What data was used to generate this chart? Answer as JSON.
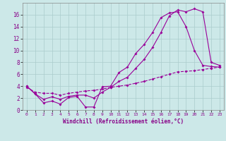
{
  "title": "",
  "xlabel": "Windchill (Refroidissement éolien,°C)",
  "bg_color": "#cce8e8",
  "line_color": "#990099",
  "grid_color": "#aacccc",
  "line1_x": [
    0,
    1,
    2,
    3,
    4,
    5,
    6,
    7,
    8,
    9,
    10,
    11,
    12,
    13,
    14,
    15,
    16,
    17,
    18,
    19,
    20,
    21,
    22,
    23
  ],
  "line1_y": [
    4.0,
    2.7,
    1.2,
    1.5,
    1.0,
    2.1,
    2.3,
    0.5,
    0.5,
    3.9,
    4.0,
    6.3,
    7.2,
    9.5,
    11.0,
    13.0,
    15.5,
    16.3,
    16.5,
    14.0,
    10.0,
    7.5,
    7.3,
    7.2
  ],
  "line2_x": [
    0,
    1,
    2,
    3,
    4,
    5,
    6,
    7,
    8,
    9,
    10,
    11,
    12,
    13,
    14,
    15,
    16,
    17,
    18,
    19,
    20,
    21,
    22,
    23
  ],
  "line2_y": [
    4.0,
    2.7,
    1.8,
    2.2,
    1.8,
    2.3,
    2.5,
    2.5,
    2.0,
    3.0,
    3.8,
    4.8,
    5.5,
    7.0,
    8.5,
    10.5,
    13.0,
    15.8,
    16.8,
    16.5,
    17.0,
    16.5,
    8.0,
    7.5
  ],
  "line3_x": [
    0,
    1,
    2,
    3,
    4,
    5,
    6,
    7,
    8,
    9,
    10,
    11,
    12,
    13,
    14,
    15,
    16,
    17,
    18,
    19,
    20,
    21,
    22,
    23
  ],
  "line3_y": [
    3.8,
    3.0,
    2.8,
    2.8,
    2.5,
    2.8,
    3.0,
    3.2,
    3.3,
    3.5,
    3.8,
    4.0,
    4.2,
    4.5,
    4.8,
    5.2,
    5.6,
    6.0,
    6.4,
    6.5,
    6.6,
    6.8,
    7.0,
    7.2
  ],
  "xlim": [
    -0.5,
    23.5
  ],
  "ylim": [
    0,
    18
  ],
  "xticks": [
    0,
    1,
    2,
    3,
    4,
    5,
    6,
    7,
    8,
    9,
    10,
    11,
    12,
    13,
    14,
    15,
    16,
    17,
    18,
    19,
    20,
    21,
    22,
    23
  ],
  "yticks": [
    0,
    2,
    4,
    6,
    8,
    10,
    12,
    14,
    16
  ]
}
